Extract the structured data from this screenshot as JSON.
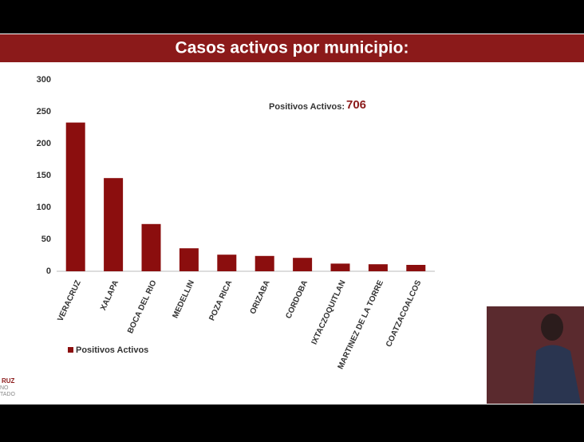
{
  "chart_data": {
    "type": "bar",
    "title": "Casos activos por municipio:",
    "categories": [
      "VERACRUZ",
      "XALAPA",
      "BOCA DEL RIO",
      "MEDELLIN",
      "POZA RICA",
      "ORIZABA",
      "CORDOBA",
      "IXTACZOQUITLAN",
      "MARTINEZ DE LA TORRE",
      "COATZACOALCOS"
    ],
    "series": [
      {
        "name": "Positivos Activos",
        "color": "#8b0e0e",
        "values": [
          233,
          146,
          74,
          36,
          26,
          24,
          21,
          12,
          11,
          10
        ]
      }
    ],
    "ylim": [
      0,
      300
    ],
    "yticks": [
      0,
      50,
      100,
      150,
      200,
      250,
      300
    ],
    "grid": false,
    "annotation": {
      "label": "Positivos Activos:",
      "value": 706
    },
    "logo": [
      "RUZ",
      "NO",
      "TADO"
    ]
  }
}
